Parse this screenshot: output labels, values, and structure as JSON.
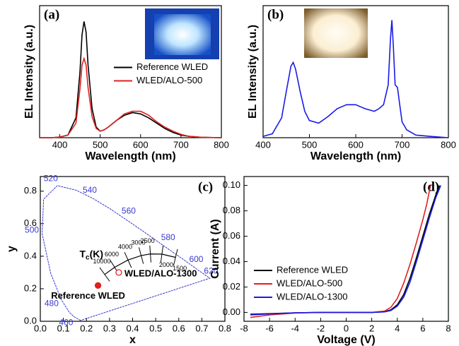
{
  "chart_data": [
    {
      "type": "line",
      "panel_label": "(a)",
      "xlabel": "Wavelength (nm)",
      "ylabel": "EL Intensity (a.u.)",
      "xlim": [
        350,
        800
      ],
      "xticks": [
        400,
        500,
        600,
        700,
        800
      ],
      "ylim": [
        0,
        1
      ],
      "legend": "center right",
      "x": [
        350,
        380,
        400,
        420,
        440,
        450,
        455,
        460,
        465,
        470,
        480,
        490,
        500,
        510,
        520,
        540,
        560,
        580,
        600,
        620,
        640,
        660,
        680,
        700,
        720,
        750,
        800
      ],
      "series": [
        {
          "name": "Reference WLED",
          "color": "#000000",
          "values": [
            0,
            0,
            0.005,
            0.02,
            0.15,
            0.5,
            0.78,
            0.88,
            0.8,
            0.55,
            0.22,
            0.08,
            0.05,
            0.06,
            0.08,
            0.13,
            0.17,
            0.19,
            0.18,
            0.15,
            0.11,
            0.07,
            0.04,
            0.02,
            0.01,
            0.003,
            0
          ]
        },
        {
          "name": "WLED/ALO-500",
          "color": "#e02020",
          "values": [
            0,
            0,
            0.005,
            0.02,
            0.11,
            0.37,
            0.55,
            0.6,
            0.55,
            0.38,
            0.16,
            0.07,
            0.05,
            0.06,
            0.08,
            0.13,
            0.18,
            0.2,
            0.2,
            0.17,
            0.12,
            0.08,
            0.05,
            0.025,
            0.01,
            0.003,
            0
          ]
        }
      ]
    },
    {
      "type": "line",
      "panel_label": "(b)",
      "xlabel": "Wavelength (nm)",
      "ylabel": "EL Intensity (a.u.)",
      "xlim": [
        400,
        800
      ],
      "xticks": [
        400,
        500,
        600,
        700,
        800
      ],
      "ylim": [
        0,
        1
      ],
      "x": [
        400,
        420,
        440,
        450,
        460,
        465,
        470,
        480,
        490,
        500,
        520,
        540,
        560,
        580,
        600,
        620,
        640,
        650,
        660,
        670,
        675,
        678,
        681,
        685,
        690,
        695,
        700,
        710,
        730,
        760,
        800
      ],
      "series": [
        {
          "color": "#1a1ae6",
          "values": [
            0.01,
            0.03,
            0.15,
            0.35,
            0.54,
            0.57,
            0.52,
            0.35,
            0.2,
            0.13,
            0.11,
            0.16,
            0.22,
            0.25,
            0.25,
            0.22,
            0.2,
            0.22,
            0.25,
            0.4,
            0.75,
            0.89,
            0.7,
            0.4,
            0.38,
            0.25,
            0.12,
            0.06,
            0.02,
            0.01,
            0
          ]
        }
      ]
    },
    {
      "type": "cie",
      "panel_label": "(c)",
      "xlabel": "x",
      "ylabel": "y",
      "xlim": [
        0,
        0.8
      ],
      "xticks": [
        {
          "value": 0,
          "label": "0.0"
        },
        0.1,
        0.2,
        0.3,
        0.4,
        0.5,
        0.6,
        0.7,
        0.8
      ],
      "ylim": [
        0,
        0.89
      ],
      "yticks": [
        {
          "value": 0,
          "label": "0.0"
        },
        0.2,
        0.4,
        0.6,
        0.8
      ],
      "locus": {
        "color": "#3a3ad0",
        "x": [
          0.174,
          0.144,
          0.124,
          0.091,
          0.045,
          0.008,
          0.014,
          0.074,
          0.155,
          0.23,
          0.302,
          0.373,
          0.444,
          0.512,
          0.575,
          0.627,
          0.691,
          0.735
        ],
        "y": [
          0.005,
          0.03,
          0.058,
          0.133,
          0.295,
          0.538,
          0.75,
          0.834,
          0.806,
          0.754,
          0.692,
          0.624,
          0.555,
          0.487,
          0.424,
          0.373,
          0.308,
          0.265
        ],
        "wavelengths": [
          null,
          "460",
          null,
          "480",
          null,
          "500",
          null,
          "520",
          null,
          "540",
          null,
          "560",
          null,
          "580",
          null,
          "600",
          "620",
          null
        ]
      },
      "planck": {
        "x": [
          0.279,
          0.322,
          0.38,
          0.437,
          0.477,
          0.527,
          0.586
        ],
        "y": [
          0.288,
          0.332,
          0.377,
          0.404,
          0.414,
          0.413,
          0.393
        ],
        "temperatures": [
          "10000",
          "6000",
          "4000",
          "3000",
          "2500",
          "2000",
          "1500"
        ]
      },
      "planck_label": {
        "main": "T",
        "sub": "c",
        "rest": "(K)"
      },
      "points": [
        {
          "name": "Reference WLED",
          "x": 0.25,
          "y": 0.22,
          "color": "#e02020",
          "filled": true
        },
        {
          "name": "WLED/ALO-1300",
          "x": 0.34,
          "y": 0.3,
          "color": "#e02020",
          "filled": false
        }
      ]
    },
    {
      "type": "line",
      "panel_label": "(d)",
      "xlabel": "Voltage (V)",
      "ylabel": "Current (A)",
      "xlim": [
        -8,
        8
      ],
      "xticks": [
        -8,
        -6,
        -4,
        -2,
        0,
        2,
        4,
        6,
        8
      ],
      "ylim": [
        -0.007,
        0.107
      ],
      "yticks": [
        {
          "value": 0,
          "label": "0.00"
        },
        {
          "value": 0.02,
          "label": "0.02"
        },
        {
          "value": 0.04,
          "label": "0.04"
        },
        {
          "value": 0.06,
          "label": "0.06"
        },
        {
          "value": 0.08,
          "label": "0.08"
        },
        {
          "value": 0.1,
          "label": "0.10"
        }
      ],
      "legend": "lower left",
      "series": [
        {
          "name": "Reference WLED",
          "color": "#000000",
          "x": [
            -7.5,
            -6,
            -4,
            -2,
            0,
            2,
            3,
            3.5,
            4,
            4.5,
            5,
            5.5,
            6,
            6.5,
            7,
            7.3
          ],
          "values": [
            -0.0015,
            -0.001,
            -0.0003,
            0,
            0,
            0,
            0.0005,
            0.002,
            0.006,
            0.014,
            0.027,
            0.043,
            0.06,
            0.077,
            0.092,
            0.1
          ]
        },
        {
          "name": "WLED/ALO-500",
          "color": "#e02020",
          "x": [
            -7.5,
            -6,
            -4,
            -2,
            0,
            2,
            3,
            3.5,
            4,
            4.5,
            5,
            5.5,
            6,
            6.3,
            6.6
          ],
          "values": [
            -0.004,
            -0.002,
            -0.0005,
            0,
            0,
            0,
            0.001,
            0.004,
            0.011,
            0.023,
            0.038,
            0.055,
            0.073,
            0.085,
            0.1
          ]
        },
        {
          "name": "WLED/ALO-1300",
          "color": "#1a1ae6",
          "x": [
            -7.5,
            -6,
            -4,
            -2,
            0,
            2,
            3,
            3.5,
            4,
            4.5,
            5,
            5.5,
            6,
            6.5,
            7,
            7.4
          ],
          "values": [
            -0.002,
            -0.0012,
            -0.0003,
            0,
            0,
            0,
            0.0004,
            0.0015,
            0.005,
            0.012,
            0.024,
            0.04,
            0.057,
            0.074,
            0.09,
            0.1
          ]
        }
      ]
    }
  ]
}
